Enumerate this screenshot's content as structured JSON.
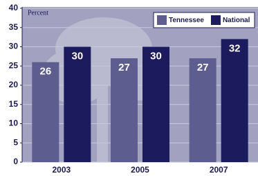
{
  "chart_data": {
    "type": "bar",
    "y_label": "Percent",
    "categories": [
      "2003",
      "2005",
      "2007"
    ],
    "series": [
      {
        "name": "Tennessee",
        "color": "#5d5d90",
        "values": [
          26,
          27,
          27
        ]
      },
      {
        "name": "National",
        "color": "#1b1b5e",
        "values": [
          30,
          30,
          32
        ]
      }
    ],
    "ylim": [
      0,
      40
    ],
    "yticks": [
      0,
      5,
      10,
      15,
      20,
      25,
      30,
      35,
      40
    ],
    "grid": true,
    "legend": "top-right"
  }
}
